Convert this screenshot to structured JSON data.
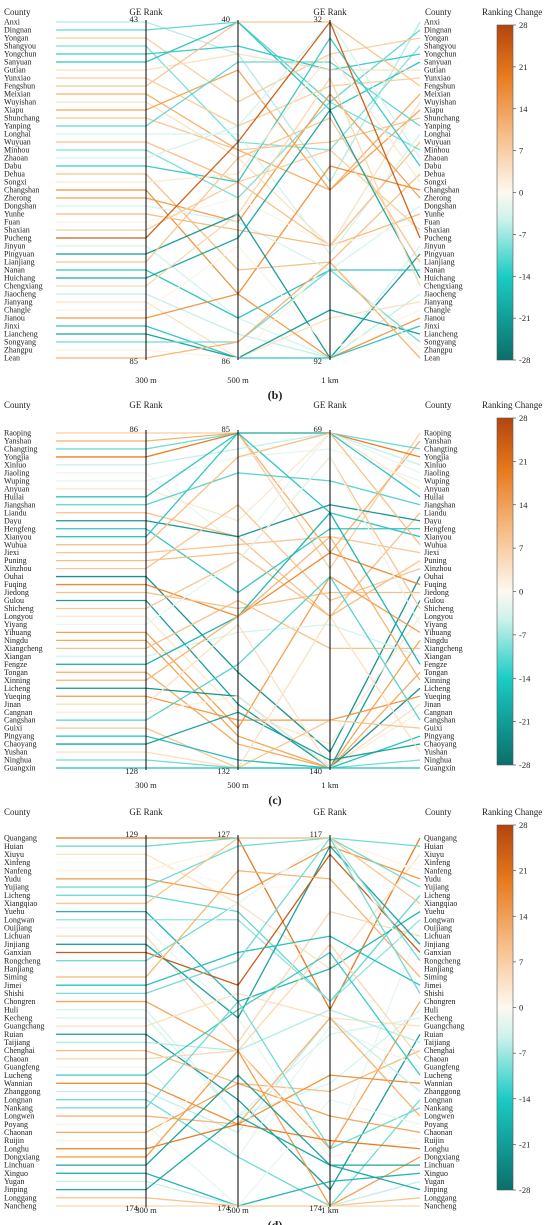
{
  "chart_data": [
    {
      "type": "parallel-coordinates",
      "panel_label": "(b)",
      "headers": {
        "left": "County",
        "middle": "GE Rank",
        "right": "County",
        "legend": "Ranking Change"
      },
      "axes": [
        "300 m",
        "500 m",
        "1 km"
      ],
      "rank_top_labels": [
        "43",
        "40",
        "32"
      ],
      "rank_bottom_labels": [
        "85",
        "86",
        "92"
      ],
      "rank_range": [
        43,
        92
      ],
      "colorbar_ticks": [
        28,
        21,
        14,
        7,
        0,
        -7,
        -14,
        -21,
        -28
      ],
      "counties_left": [
        "Anxi",
        "Dingnan",
        "Yongan",
        "Shangyou",
        "Yongchun",
        "Sanyuan",
        "Gutian",
        "Yunxiao",
        "Fengshun",
        "Meixian",
        "Wuyishan",
        "Xiapu",
        "Shunchang",
        "Yanping",
        "Longhai",
        "Wuyuan",
        "Minhou",
        "Zhaoan",
        "Dabu",
        "Dehua",
        "Songxi",
        "Changshan",
        "Zherong",
        "Dongshan",
        "Yunhe",
        "Fuan",
        "Shaxian",
        "Pucheng",
        "Jinyun",
        "Pingyuan",
        "Lianjiang",
        "Nanan",
        "Huichang",
        "Chengxiang",
        "Jiaocheng",
        "Jianyang",
        "Changle",
        "Jianou",
        "Jinxi",
        "Liancheng",
        "Songyang",
        "Zhangpu",
        "Lean"
      ],
      "counties_right": [
        "Anxi",
        "Dingnan",
        "Yongan",
        "Shangyou",
        "Yongchun",
        "Sanyuan",
        "Gutian",
        "Yunxiao",
        "Fengshun",
        "Meixian",
        "Wuyishan",
        "Xiapu",
        "Shunchang",
        "Yanping",
        "Longhai",
        "Wuyuan",
        "Minhou",
        "Zhaoan",
        "Dabu",
        "Dehua",
        "Songxi",
        "Changshan",
        "Zherong",
        "Dongshan",
        "Yunhe",
        "Fuan",
        "Shaxian",
        "Pucheng",
        "Jinyun",
        "Pingyuan",
        "Lianjiang",
        "Nanan",
        "Huichang",
        "Chengxiang",
        "Jiaocheng",
        "Jianyang",
        "Changle",
        "Jianou",
        "Jinxi",
        "Liancheng",
        "Songyang",
        "Zhangpu",
        "Lean"
      ]
    },
    {
      "type": "parallel-coordinates",
      "panel_label": "(c)",
      "headers": {
        "left": "County",
        "middle": "GE Rank",
        "right": "County",
        "legend": "Ranking Change"
      },
      "axes": [
        "300 m",
        "500 m",
        "1 km"
      ],
      "rank_top_labels": [
        "86",
        "85",
        "69"
      ],
      "rank_bottom_labels": [
        "128",
        "132",
        "140"
      ],
      "rank_range": [
        69,
        140
      ],
      "colorbar_ticks": [
        28,
        21,
        14,
        7,
        0,
        -7,
        -14,
        -21,
        -28
      ],
      "counties_left": [
        "Raoping",
        "Yanshan",
        "Changting",
        "Yongjia",
        "Xinluo",
        "Jiaoling",
        "Wuping",
        "Anyuan",
        "Huilai",
        "Jiangshan",
        "Liandu",
        "Dayu",
        "Hengfeng",
        "Xianyou",
        "Wuhua",
        "Jiexi",
        "Puning",
        "Xinzhou",
        "Ouhai",
        "Fuqing",
        "Jiedong",
        "Gulou",
        "Shicheng",
        "Longyou",
        "Yiyang",
        "Yihuang",
        "Ningdu",
        "Xiangcheng",
        "Xiangan",
        "Fengze",
        "Tongan",
        "Xinning",
        "Licheng",
        "Yueqing",
        "Jinan",
        "Cangnan",
        "Cangshan",
        "Guixi",
        "Pingyang",
        "Chaoyang",
        "Yushan",
        "Ninghua",
        "Guangxin"
      ],
      "counties_right": [
        "Raoping",
        "Yanshan",
        "Changting",
        "Yongjia",
        "Xinluo",
        "Jiaoling",
        "Wuping",
        "Anyuan",
        "Huilai",
        "Jiangshan",
        "Liandu",
        "Dayu",
        "Hengfeng",
        "Xianyou",
        "Wuhua",
        "Jiexi",
        "Puning",
        "Xinzhou",
        "Ouhai",
        "Fuqing",
        "Jiedong",
        "Gulou",
        "Shicheng",
        "Longyou",
        "Yiyang",
        "Yihuang",
        "Ningdu",
        "Xiangcheng",
        "Xiangan",
        "Fengze",
        "Tongan",
        "Xinning",
        "Licheng",
        "Yueqing",
        "Jinan",
        "Cangnan",
        "Cangshan",
        "Guixi",
        "Pingyang",
        "Chaoyang",
        "Yushan",
        "Ninghua",
        "Guangxin"
      ]
    },
    {
      "type": "parallel-coordinates",
      "panel_label": "(d)",
      "headers": {
        "left": "County",
        "middle": "GE Rank",
        "right": "County",
        "legend": "Ranking Change"
      },
      "axes": [
        "300 m",
        "500 m",
        "1 km"
      ],
      "rank_top_labels": [
        "129",
        "127",
        "117"
      ],
      "rank_bottom_labels": [
        "174",
        "174",
        "174"
      ],
      "rank_range": [
        117,
        174
      ],
      "colorbar_ticks": [
        28,
        21,
        14,
        7,
        0,
        -7,
        -14,
        -21,
        -28
      ],
      "counties_left": [
        "Quangang",
        "Huian",
        "Xiuyu",
        "Xinfeng",
        "Nanfeng",
        "Yudu",
        "Yujiang",
        "Licheng",
        "Xiangqiao",
        "Yuehu",
        "Longwan",
        "Ouijiang",
        "Lichuan",
        "Jinjiang",
        "Ganxian",
        "Rongcheng",
        "Hanjiang",
        "Siming",
        "Jimei",
        "Shishi",
        "Chongren",
        "Huli",
        "Kecheng",
        "Guangchang",
        "Ruian",
        "Taijiang",
        "Chenghai",
        "Chaoan",
        "Guangfeng",
        "Lucheng",
        "Wannian",
        "Zhanggong",
        "Longnan",
        "Nankang",
        "Longwen",
        "Poyang",
        "Chaonan",
        "Ruijin",
        "Longhu",
        "Dongxiang",
        "Linchuan",
        "Xinguo",
        "Yugan",
        "Jinping",
        "Longgang",
        "Nancheng"
      ],
      "counties_right": [
        "Quangang",
        "Huian",
        "Xiuyu",
        "Xinfeng",
        "Nanfeng",
        "Yudu",
        "Yujiang",
        "Licheng",
        "Xiangqiao",
        "Yuehu",
        "Longwan",
        "Ouijiang",
        "Lichuan",
        "Jinjiang",
        "Ganxian",
        "Rongcheng",
        "Hanjiang",
        "Siming",
        "Jimei",
        "Shishi",
        "Chongren",
        "Huli",
        "Kecheng",
        "Guangchang",
        "Ruian",
        "Taijiang",
        "Chenghai",
        "Chaoan",
        "Guangfeng",
        "Lucheng",
        "Wannian",
        "Zhanggong",
        "Longnan",
        "Nankang",
        "Longwen",
        "Poyang",
        "Chaonan",
        "Ruijin",
        "Longhu",
        "Dongxiang",
        "Linchuan",
        "Xinguo",
        "Yugan",
        "Jinping",
        "Longgang",
        "Nancheng"
      ]
    }
  ]
}
